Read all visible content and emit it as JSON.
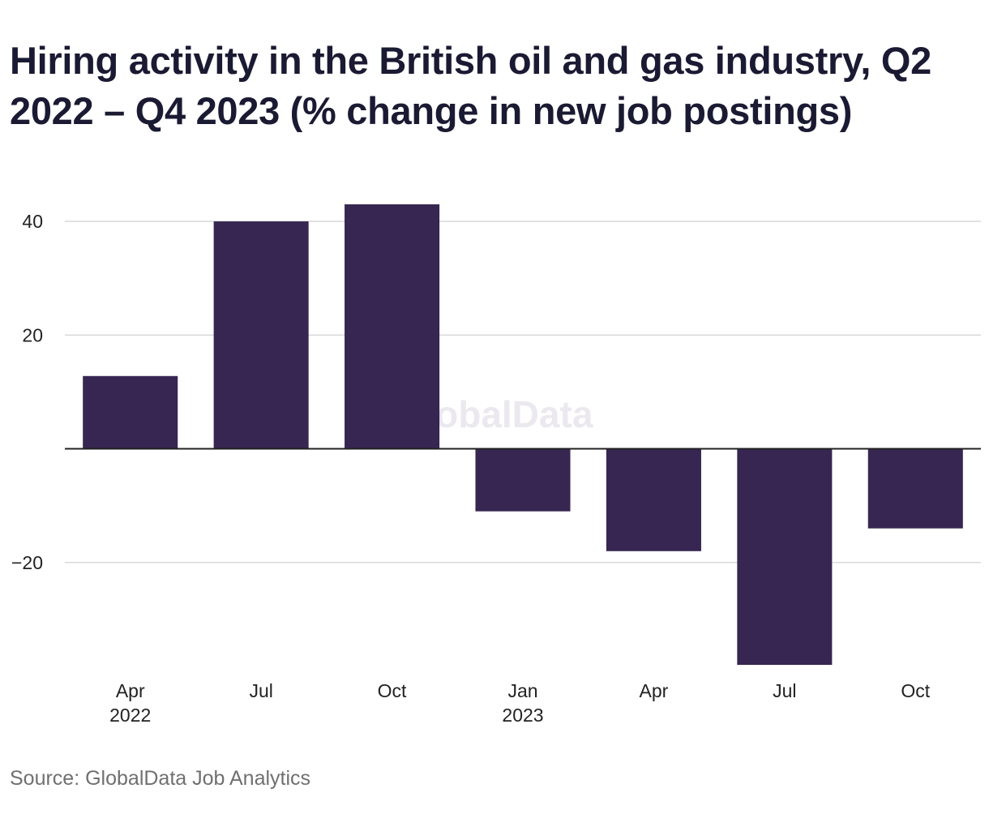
{
  "chart_data": {
    "type": "bar",
    "title": "Hiring activity in the British oil and gas industry, Q2 2022 – Q4 2023 (% change in new job postings)",
    "categories": [
      "Apr 2022",
      "Jul 2022",
      "Oct 2022",
      "Jan 2023",
      "Apr 2023",
      "Jul 2023",
      "Oct 2023"
    ],
    "category_labels": [
      [
        "Apr",
        "2022"
      ],
      [
        "Jul",
        ""
      ],
      [
        "Oct",
        ""
      ],
      [
        "Jan",
        "2023"
      ],
      [
        "Apr",
        ""
      ],
      [
        "Jul",
        ""
      ],
      [
        "Oct",
        ""
      ]
    ],
    "values": [
      12.8,
      40.0,
      43.0,
      -11.0,
      -18.0,
      -38.0,
      -14.0
    ],
    "ylim": [
      -38,
      45
    ],
    "yticks": [
      40,
      20,
      -20
    ],
    "ytick_labels": [
      "40",
      "20",
      "−20"
    ],
    "grid": true,
    "bar_color": "#362651",
    "xlabel": "",
    "ylabel": "",
    "watermark": "GlobalData",
    "source": "Source: GlobalData Job Analytics"
  }
}
